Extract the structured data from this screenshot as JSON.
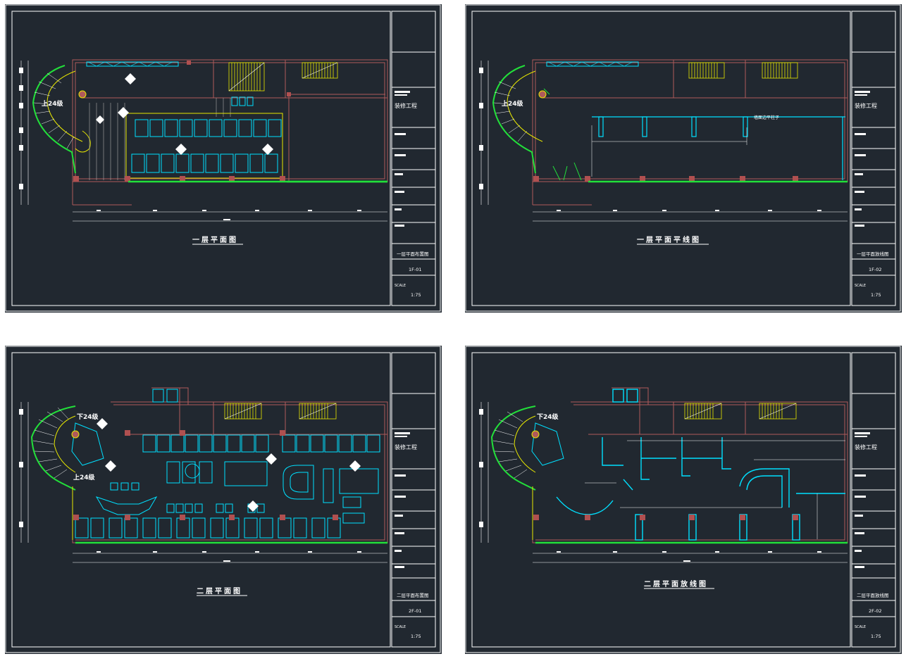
{
  "sheets": [
    {
      "id": "1f-plan",
      "title": "一层平面图",
      "project": "装修工程",
      "drawing_name": "一层平面布置图",
      "drawing_no": "1F-01",
      "scale_label": "SCALE",
      "scale": "1:75",
      "stair_label": "上24级",
      "cabinets": "",
      "annotations": {}
    },
    {
      "id": "1f-ceiling",
      "title": "一层平面平线图",
      "project": "装修工程",
      "drawing_name": "一层平面放线图",
      "drawing_no": "1F-02",
      "scale_label": "SCALE",
      "scale": "1:75",
      "stair_label": "上24级",
      "note": "墙面边平柱子"
    },
    {
      "id": "2f-plan",
      "title": "二层平面图",
      "project": "装修工程",
      "drawing_name": "二层平面布置图",
      "drawing_no": "2F-01",
      "scale_label": "SCALE",
      "scale": "1:75",
      "stair_label": "下24级",
      "stair_label_2": "上24级"
    },
    {
      "id": "2f-layout",
      "title": "二层平面放线图",
      "project": "装修工程",
      "drawing_name": "二层平面放线图",
      "drawing_no": "2F-02",
      "scale_label": "SCALE",
      "scale": "1:75",
      "stair_label": "下24级"
    }
  ],
  "colors": {
    "background": "#212830",
    "frame": "#ffffff",
    "wall": "#b05a5a",
    "furniture": "#00e0ff",
    "stairs": "#e8e800",
    "green": "#22e03a",
    "column": "#b05050"
  }
}
